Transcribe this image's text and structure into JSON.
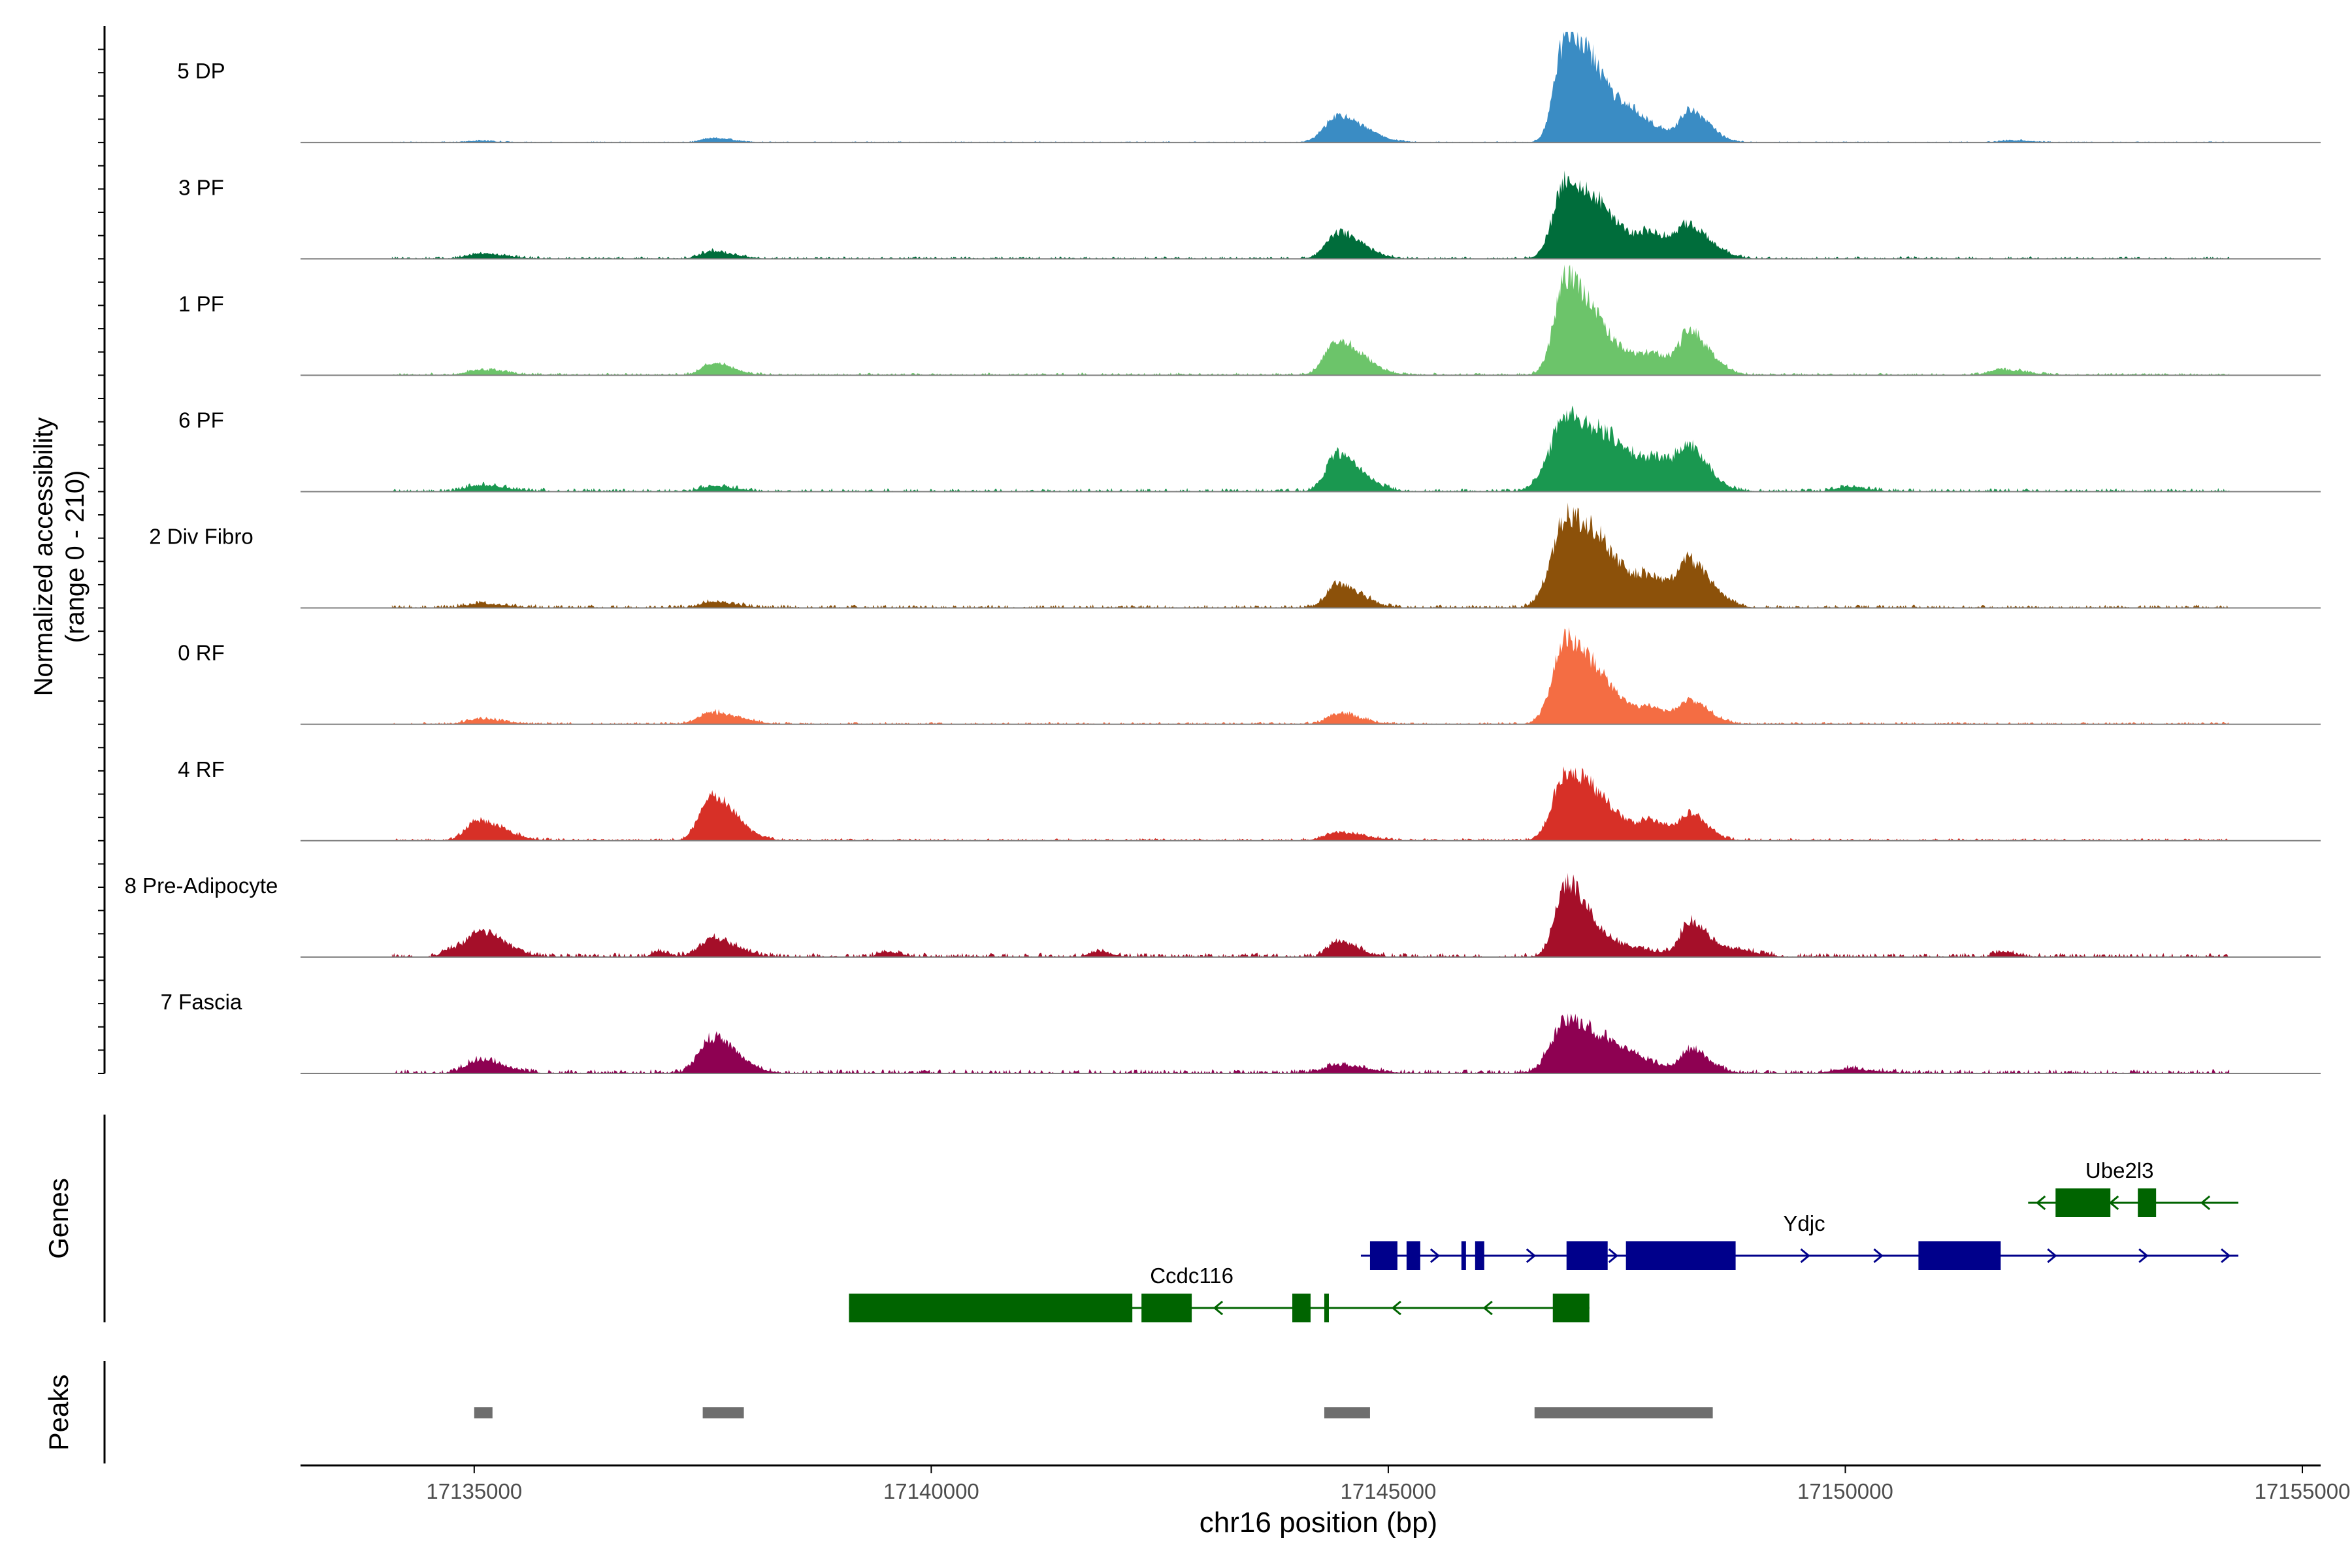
{
  "chart_data": {
    "type": "area",
    "title": "",
    "ylabel_line1": "Normalized accessibility",
    "ylabel_line2": "(range 0 - 210)",
    "yrange": [
      0,
      210
    ],
    "xlabel": "chr16 position (bp)",
    "xlim": [
      17133100,
      17155200
    ],
    "xticks": [
      17135000,
      17140000,
      17145000,
      17150000,
      17155000
    ],
    "xtick_labels": [
      "17135000",
      "17140000",
      "17145000",
      "17150000",
      "17155000"
    ],
    "genes_label": "Genes",
    "peaks_label": "Peaks",
    "tracks": [
      {
        "name": "5 DP",
        "color": "#3a8cc4",
        "peaks": [
          [
            17135000,
            3,
            150
          ],
          [
            17137600,
            8,
            140
          ],
          [
            17144450,
            50,
            180
          ],
          [
            17146950,
            205,
            150
          ],
          [
            17147300,
            70,
            180
          ],
          [
            17147700,
            35,
            200
          ],
          [
            17148300,
            55,
            130
          ],
          [
            17151800,
            4,
            150
          ]
        ],
        "noise": 1.5
      },
      {
        "name": "3 PF",
        "color": "#006d3b",
        "peaks": [
          [
            17135050,
            10,
            170
          ],
          [
            17137600,
            14,
            150
          ],
          [
            17144450,
            50,
            160
          ],
          [
            17146950,
            150,
            170
          ],
          [
            17147400,
            55,
            200
          ],
          [
            17147900,
            35,
            160
          ],
          [
            17148300,
            55,
            150
          ]
        ],
        "noise": 3
      },
      {
        "name": "1 PF",
        "color": "#6cc46a",
        "peaks": [
          [
            17135050,
            10,
            170
          ],
          [
            17137600,
            22,
            140
          ],
          [
            17144450,
            65,
            170
          ],
          [
            17146950,
            185,
            160
          ],
          [
            17147400,
            45,
            220
          ],
          [
            17147900,
            25,
            150
          ],
          [
            17148300,
            75,
            140
          ],
          [
            17151700,
            10,
            170
          ]
        ],
        "noise": 3
      },
      {
        "name": "6 PF",
        "color": "#1a9850",
        "peaks": [
          [
            17135050,
            12,
            180
          ],
          [
            17137600,
            10,
            150
          ],
          [
            17144450,
            70,
            160
          ],
          [
            17146950,
            140,
            220
          ],
          [
            17147500,
            55,
            240
          ],
          [
            17148000,
            40,
            200
          ],
          [
            17148300,
            55,
            130
          ],
          [
            17150000,
            8,
            150
          ]
        ],
        "noise": 4
      },
      {
        "name": "2 Div Fibro",
        "color": "#8c510a",
        "peaks": [
          [
            17135050,
            8,
            180
          ],
          [
            17137600,
            12,
            150
          ],
          [
            17144450,
            45,
            150
          ],
          [
            17146950,
            170,
            200
          ],
          [
            17147400,
            55,
            240
          ],
          [
            17147900,
            35,
            180
          ],
          [
            17148300,
            75,
            150
          ]
        ],
        "noise": 4
      },
      {
        "name": "0 RF",
        "color": "#f46d43",
        "peaks": [
          [
            17135050,
            10,
            170
          ],
          [
            17137600,
            22,
            180
          ],
          [
            17144450,
            20,
            150
          ],
          [
            17146950,
            160,
            180
          ],
          [
            17147400,
            35,
            220
          ],
          [
            17147900,
            20,
            150
          ],
          [
            17148300,
            40,
            130
          ]
        ],
        "noise": 3
      },
      {
        "name": "4 RF",
        "color": "#d73027",
        "peaks": [
          [
            17135050,
            38,
            170
          ],
          [
            17137600,
            85,
            160
          ],
          [
            17144450,
            15,
            180
          ],
          [
            17146950,
            130,
            180
          ],
          [
            17147400,
            35,
            220
          ],
          [
            17147900,
            25,
            150
          ],
          [
            17148300,
            45,
            120
          ]
        ],
        "noise": 3
      },
      {
        "name": "8 Pre-Adipocyte",
        "color": "#a50f29",
        "peaks": [
          [
            17134700,
            12,
            80
          ],
          [
            17135050,
            48,
            170
          ],
          [
            17137000,
            10,
            80
          ],
          [
            17137600,
            35,
            160
          ],
          [
            17139500,
            10,
            100
          ],
          [
            17141800,
            10,
            100
          ],
          [
            17144450,
            30,
            130
          ],
          [
            17146950,
            140,
            150
          ],
          [
            17147500,
            20,
            220
          ],
          [
            17148300,
            65,
            130
          ],
          [
            17148800,
            12,
            150
          ],
          [
            17151700,
            10,
            90
          ]
        ],
        "noise": 5
      },
      {
        "name": "7 Fascia",
        "color": "#8e0152",
        "peaks": [
          [
            17135050,
            25,
            170
          ],
          [
            17137600,
            65,
            170
          ],
          [
            17144450,
            15,
            200
          ],
          [
            17146950,
            100,
            200
          ],
          [
            17147500,
            35,
            240
          ],
          [
            17148300,
            40,
            130
          ],
          [
            17150000,
            8,
            200
          ]
        ],
        "noise": 5
      }
    ],
    "genes": [
      {
        "name": "Ube2l3",
        "row": 0,
        "color": "#006400",
        "start": 17152000,
        "end": 17154300,
        "strand": "-",
        "exons": [
          [
            17152300,
            17152900
          ],
          [
            17153200,
            17153400
          ]
        ],
        "arrows": [
          17152100,
          17152900,
          17153900
        ]
      },
      {
        "name": "Ydjc",
        "row": 1,
        "color": "#00008b",
        "start": 17144700,
        "end": 17154300,
        "strand": "+",
        "exons": [
          [
            17144800,
            17145100
          ],
          [
            17145200,
            17145350
          ],
          [
            17145800,
            17145850
          ],
          [
            17145950,
            17146050
          ],
          [
            17146950,
            17147400
          ],
          [
            17147600,
            17148800
          ],
          [
            17150800,
            17151700
          ]
        ],
        "arrows": [
          17145550,
          17146600,
          17147500,
          17149600,
          17150400,
          17152300,
          17153300,
          17154200
        ]
      },
      {
        "name": "Ccdc116",
        "row": 2,
        "color": "#006400",
        "start": 17139100,
        "end": 17147200,
        "strand": "-",
        "exons": [
          [
            17139100,
            17142200
          ],
          [
            17142300,
            17142850
          ],
          [
            17143950,
            17144150
          ],
          [
            17144300,
            17144350
          ],
          [
            17146800,
            17147200
          ]
        ],
        "arrows": [
          17143100,
          17145050,
          17146050
        ]
      }
    ],
    "gene_label_positions": {
      "Ube2l3": 17153000,
      "Ydjc": 17149550,
      "Ccdc116": 17142850
    },
    "peak_regions": [
      [
        17135000,
        17135200
      ],
      [
        17137500,
        17137950
      ],
      [
        17144300,
        17144800
      ],
      [
        17146600,
        17148550
      ]
    ]
  }
}
